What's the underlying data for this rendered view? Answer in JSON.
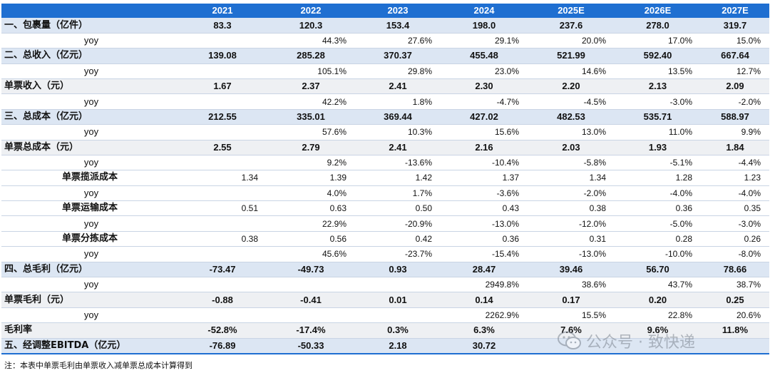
{
  "header": [
    "",
    "2021",
    "2022",
    "2023",
    "2024",
    "2025E",
    "2026E",
    "2027E"
  ],
  "rows": [
    {
      "label": "一、包裹量（亿件）",
      "kind": "main",
      "values": [
        "83.3",
        "120.3",
        "153.4",
        "198.0",
        "237.6",
        "278.0",
        "319.7"
      ]
    },
    {
      "label": "yoy",
      "kind": "yoy",
      "values": [
        "",
        "44.3%",
        "27.6%",
        "29.1%",
        "20.0%",
        "17.0%",
        "15.0%"
      ]
    },
    {
      "label": "二、总收入（亿元）",
      "kind": "main",
      "values": [
        "139.08",
        "285.28",
        "370.37",
        "455.48",
        "521.99",
        "592.40",
        "667.64"
      ]
    },
    {
      "label": "yoy",
      "kind": "yoy",
      "values": [
        "",
        "105.1%",
        "29.8%",
        "23.0%",
        "14.6%",
        "13.5%",
        "12.7%"
      ]
    },
    {
      "label": "单票收入（元）",
      "kind": "sub",
      "values": [
        "1.67",
        "2.37",
        "2.41",
        "2.30",
        "2.20",
        "2.13",
        "2.09"
      ]
    },
    {
      "label": "yoy",
      "kind": "yoy",
      "values": [
        "",
        "42.2%",
        "1.8%",
        "-4.7%",
        "-4.5%",
        "-3.0%",
        "-2.0%"
      ]
    },
    {
      "label": "三、总成本（亿元）",
      "kind": "main",
      "values": [
        "212.55",
        "335.01",
        "369.44",
        "427.02",
        "482.53",
        "535.71",
        "588.97"
      ]
    },
    {
      "label": "yoy",
      "kind": "yoy",
      "values": [
        "",
        "57.6%",
        "10.3%",
        "15.6%",
        "13.0%",
        "11.0%",
        "9.9%"
      ]
    },
    {
      "label": "单票总成本（元）",
      "kind": "sub",
      "values": [
        "2.55",
        "2.79",
        "2.41",
        "2.16",
        "2.03",
        "1.93",
        "1.84"
      ]
    },
    {
      "label": "yoy",
      "kind": "yoy",
      "values": [
        "",
        "9.2%",
        "-13.6%",
        "-10.4%",
        "-5.8%",
        "-5.1%",
        "-4.4%"
      ]
    },
    {
      "label": "单票揽派成本",
      "kind": "indent",
      "values": [
        "1.34",
        "1.39",
        "1.42",
        "1.37",
        "1.34",
        "1.28",
        "1.23"
      ]
    },
    {
      "label": "yoy",
      "kind": "yoy",
      "values": [
        "",
        "4.0%",
        "1.7%",
        "-3.6%",
        "-2.0%",
        "-4.0%",
        "-4.0%"
      ]
    },
    {
      "label": "单票运输成本",
      "kind": "indent",
      "values": [
        "0.51",
        "0.63",
        "0.50",
        "0.43",
        "0.38",
        "0.36",
        "0.35"
      ]
    },
    {
      "label": "yoy",
      "kind": "yoy",
      "values": [
        "",
        "22.9%",
        "-20.9%",
        "-13.0%",
        "-12.0%",
        "-5.0%",
        "-3.0%"
      ]
    },
    {
      "label": "单票分拣成本",
      "kind": "indent",
      "values": [
        "0.38",
        "0.56",
        "0.42",
        "0.36",
        "0.31",
        "0.28",
        "0.26"
      ]
    },
    {
      "label": "yoy",
      "kind": "yoy",
      "values": [
        "",
        "45.6%",
        "-23.7%",
        "-15.4%",
        "-13.0%",
        "-10.0%",
        "-8.0%"
      ]
    },
    {
      "label": "四、总毛利（亿元）",
      "kind": "main",
      "values": [
        "-73.47",
        "-49.73",
        "0.93",
        "28.47",
        "39.46",
        "56.70",
        "78.66"
      ]
    },
    {
      "label": "yoy",
      "kind": "yoy",
      "values": [
        "",
        "",
        "",
        "2949.8%",
        "38.6%",
        "43.7%",
        "38.7%"
      ]
    },
    {
      "label": "单票毛利（元）",
      "kind": "sub",
      "values": [
        "-0.88",
        "-0.41",
        "0.01",
        "0.14",
        "0.17",
        "0.20",
        "0.25"
      ]
    },
    {
      "label": "yoy",
      "kind": "yoy",
      "values": [
        "",
        "",
        "",
        "2262.9%",
        "15.5%",
        "22.8%",
        "20.6%"
      ]
    },
    {
      "label": "毛利率",
      "kind": "sub",
      "values": [
        "-52.8%",
        "-17.4%",
        "0.3%",
        "6.3%",
        "7.6%",
        "9.6%",
        "11.8%"
      ]
    },
    {
      "label": "五、经调整EBITDA（亿元）",
      "kind": "main",
      "values": [
        "-76.89",
        "-50.33",
        "2.18",
        "30.72",
        "",
        "",
        ""
      ]
    }
  ],
  "footnote": "注：本表中单票毛利由单票收入减单票总成本计算得到",
  "watermark": {
    "icon": "wechat-icon",
    "text": "公众号 · 致快递"
  },
  "colors": {
    "header": "#1f6fd1",
    "main_row": "#dce6f3",
    "sub_row": "#eef0f3"
  }
}
